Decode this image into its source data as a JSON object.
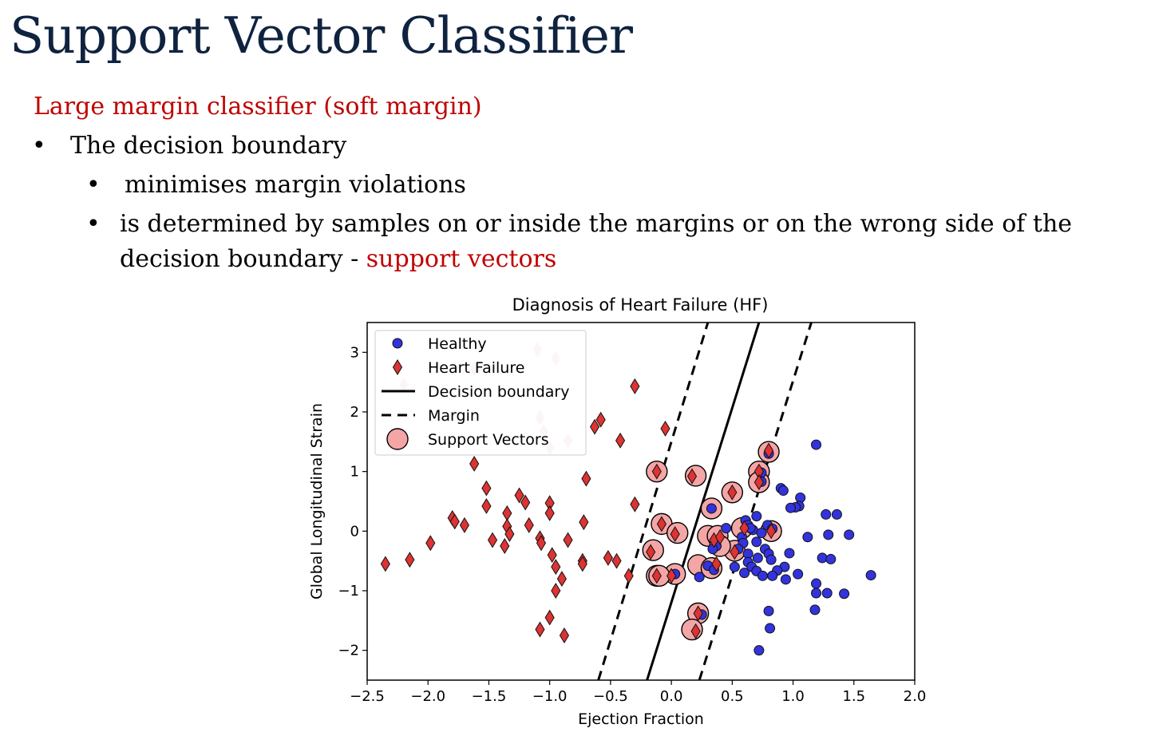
{
  "slide": {
    "title": "Support Vector Classifier",
    "subtitle": "Large margin classifier (soft margin)",
    "bullet_1": "The decision boundary",
    "bullet_2": "minimises margin violations",
    "bullet_3_line1": "is determined by samples on or inside the margins or on the wrong side of the",
    "bullet_3_line2": "decision boundary -",
    "bullet_3_highlight": "support vectors",
    "bullet_char": "•"
  },
  "chart_data": {
    "type": "scatter",
    "title": "Diagnosis of Heart Failure (HF)",
    "xlabel": "Ejection Fraction",
    "ylabel": "Global Longitudinal Strain",
    "xlim": [
      -2.5,
      2.0
    ],
    "ylim": [
      -2.5,
      3.5
    ],
    "xticks": [
      -2.5,
      -2.0,
      -1.5,
      -1.0,
      -0.5,
      0.0,
      0.5,
      1.0,
      1.5,
      2.0
    ],
    "xtick_labels": [
      "−2.5",
      "−2.0",
      "−1.5",
      "−1.0",
      "−0.5",
      "0.0",
      "0.5",
      "1.0",
      "1.5",
      "2.0"
    ],
    "yticks": [
      -2,
      -1,
      0,
      1,
      2,
      3
    ],
    "ytick_labels": [
      "−2",
      "−1",
      "0",
      "1",
      "2",
      "3"
    ],
    "grid": false,
    "legend_position": "top-left",
    "legend": [
      "Healthy",
      "Heart Failure",
      "Decision boundary",
      "Margin",
      "Support Vectors"
    ],
    "colors": {
      "healthy": "#3333dd",
      "heart_failure": "#dd3333",
      "support_vector": "#f4a6a6",
      "boundary": "#000000",
      "slide_title": "#0f2340",
      "highlight": "#c00000"
    },
    "decision_boundary": [
      [
        -0.2,
        -2.5
      ],
      [
        0.72,
        3.5
      ]
    ],
    "margin_lower": [
      [
        -0.6,
        -2.5
      ],
      [
        0.3,
        3.5
      ]
    ],
    "margin_upper": [
      [
        0.23,
        -2.5
      ],
      [
        1.15,
        3.5
      ]
    ],
    "series": [
      {
        "name": "Healthy",
        "marker": "circle",
        "points": [
          [
            1.19,
            1.45
          ],
          [
            0.8,
            1.3
          ],
          [
            0.74,
            0.98
          ],
          [
            0.74,
            0.83
          ],
          [
            0.9,
            0.72
          ],
          [
            0.92,
            0.68
          ],
          [
            1.06,
            0.56
          ],
          [
            1.05,
            0.42
          ],
          [
            1.02,
            0.4
          ],
          [
            0.98,
            0.39
          ],
          [
            1.27,
            0.28
          ],
          [
            1.36,
            0.28
          ],
          [
            0.7,
            0.25
          ],
          [
            0.33,
            0.38
          ],
          [
            0.61,
            0.18
          ],
          [
            0.63,
            0.1
          ],
          [
            0.79,
            0.1
          ],
          [
            0.83,
            0.04
          ],
          [
            0.67,
            0.02
          ],
          [
            0.74,
            -0.03
          ],
          [
            1.29,
            -0.06
          ],
          [
            1.46,
            -0.06
          ],
          [
            1.12,
            -0.1
          ],
          [
            0.58,
            -0.1
          ],
          [
            0.59,
            -0.2
          ],
          [
            0.7,
            -0.18
          ],
          [
            0.37,
            -0.25
          ],
          [
            0.34,
            -0.3
          ],
          [
            0.55,
            -0.3
          ],
          [
            0.77,
            -0.3
          ],
          [
            0.63,
            -0.38
          ],
          [
            0.8,
            -0.38
          ],
          [
            0.97,
            -0.37
          ],
          [
            0.71,
            -0.45
          ],
          [
            0.63,
            -0.52
          ],
          [
            0.82,
            -0.48
          ],
          [
            1.24,
            -0.45
          ],
          [
            1.31,
            -0.47
          ],
          [
            0.66,
            -0.6
          ],
          [
            0.93,
            -0.6
          ],
          [
            0.52,
            -0.6
          ],
          [
            0.3,
            -0.58
          ],
          [
            0.35,
            -0.65
          ],
          [
            0.7,
            -0.67
          ],
          [
            0.87,
            -0.66
          ],
          [
            0.6,
            -0.7
          ],
          [
            0.75,
            -0.75
          ],
          [
            0.83,
            -0.75
          ],
          [
            1.04,
            -0.72
          ],
          [
            1.64,
            -0.74
          ],
          [
            0.94,
            -0.81
          ],
          [
            0.23,
            -0.77
          ],
          [
            0.03,
            -0.72
          ],
          [
            1.19,
            -0.88
          ],
          [
            1.19,
            -1.04
          ],
          [
            1.28,
            -1.04
          ],
          [
            1.42,
            -1.05
          ],
          [
            1.18,
            -1.32
          ],
          [
            0.8,
            -1.34
          ],
          [
            0.25,
            -1.4
          ],
          [
            0.81,
            -1.63
          ],
          [
            0.72,
            -2.0
          ],
          [
            0.45,
            0.05
          ],
          [
            0.65,
            0.05
          ]
        ]
      },
      {
        "name": "Heart Failure",
        "marker": "diamond",
        "points": [
          [
            -2.35,
            -0.55
          ],
          [
            -2.15,
            -0.48
          ],
          [
            -1.98,
            -0.2
          ],
          [
            -1.8,
            0.22
          ],
          [
            -1.78,
            0.16
          ],
          [
            -1.7,
            0.1
          ],
          [
            -1.62,
            1.13
          ],
          [
            -1.52,
            0.72
          ],
          [
            -1.52,
            0.42
          ],
          [
            -1.47,
            -0.15
          ],
          [
            -1.37,
            -0.25
          ],
          [
            -1.35,
            0.3
          ],
          [
            -1.35,
            0.08
          ],
          [
            -1.33,
            -0.05
          ],
          [
            -1.25,
            0.6
          ],
          [
            -1.2,
            0.48
          ],
          [
            -1.17,
            0.1
          ],
          [
            -1.08,
            -0.12
          ],
          [
            -1.07,
            -0.2
          ],
          [
            -1.0,
            0.47
          ],
          [
            -1.0,
            0.3
          ],
          [
            -0.98,
            -0.4
          ],
          [
            -0.95,
            -0.6
          ],
          [
            -0.9,
            -0.8
          ],
          [
            -0.85,
            -0.15
          ],
          [
            -0.73,
            -0.5
          ],
          [
            -0.72,
            0.15
          ],
          [
            -0.7,
            0.88
          ],
          [
            -0.63,
            1.75
          ],
          [
            -0.58,
            1.87
          ],
          [
            -0.52,
            -0.45
          ],
          [
            -0.45,
            -0.5
          ],
          [
            -0.42,
            1.52
          ],
          [
            -0.35,
            -0.75
          ],
          [
            -0.3,
            0.45
          ],
          [
            -0.3,
            2.43
          ],
          [
            -0.05,
            1.72
          ],
          [
            -0.17,
            -0.35
          ],
          [
            -0.08,
            0.12
          ],
          [
            -0.12,
            1.0
          ],
          [
            -0.12,
            -0.75
          ],
          [
            0.17,
            0.92
          ],
          [
            0.0,
            -0.75
          ],
          [
            0.03,
            -0.05
          ],
          [
            0.2,
            -1.68
          ],
          [
            0.22,
            -1.38
          ],
          [
            0.35,
            -0.15
          ],
          [
            0.37,
            -0.55
          ],
          [
            0.4,
            -0.1
          ],
          [
            0.5,
            0.65
          ],
          [
            0.52,
            -0.35
          ],
          [
            0.6,
            0.05
          ],
          [
            0.72,
            1.0
          ],
          [
            0.72,
            0.82
          ],
          [
            0.8,
            1.35
          ],
          [
            0.82,
            0.0
          ],
          [
            -1.08,
            -1.65
          ],
          [
            -1.0,
            -1.45
          ],
          [
            -0.88,
            -1.75
          ],
          [
            -0.95,
            -1.0
          ],
          [
            -0.73,
            -0.55
          ]
        ]
      },
      {
        "name": "Support Vectors",
        "marker": "large-circle",
        "points": [
          [
            -0.12,
            1.0
          ],
          [
            0.2,
            0.93
          ],
          [
            0.5,
            0.65
          ],
          [
            0.72,
            1.0
          ],
          [
            0.72,
            0.82
          ],
          [
            0.8,
            1.33
          ],
          [
            0.33,
            0.38
          ],
          [
            -0.08,
            0.12
          ],
          [
            0.05,
            -0.03
          ],
          [
            0.3,
            -0.08
          ],
          [
            0.38,
            -0.08
          ],
          [
            0.58,
            0.05
          ],
          [
            0.82,
            0.0
          ],
          [
            0.52,
            -0.33
          ],
          [
            -0.15,
            -0.32
          ],
          [
            0.4,
            -0.25
          ],
          [
            0.22,
            -0.57
          ],
          [
            0.33,
            -0.62
          ],
          [
            0.03,
            -0.72
          ],
          [
            -0.12,
            -0.75
          ],
          [
            -0.1,
            -0.75
          ],
          [
            0.22,
            -1.38
          ],
          [
            0.17,
            -1.65
          ]
        ]
      }
    ],
    "faded_heart_failure": [
      [
        -1.1,
        3.05
      ],
      [
        -0.95,
        2.9
      ],
      [
        -1.62,
        2.73
      ],
      [
        -2.2,
        2.45
      ],
      [
        -1.08,
        1.9
      ],
      [
        -1.05,
        1.67
      ],
      [
        -1.0,
        1.4
      ],
      [
        -0.85,
        1.52
      ]
    ]
  }
}
